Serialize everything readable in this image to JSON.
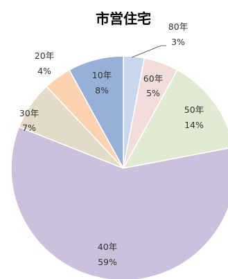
{
  "chart_data": {
    "type": "pie",
    "title": "市営住宅",
    "slices": [
      {
        "label": "80年",
        "pct_label": "3%",
        "value": 3,
        "color": "#c9d7ee"
      },
      {
        "label": "60年",
        "pct_label": "5%",
        "value": 5,
        "color": "#f3dcdc"
      },
      {
        "label": "50年",
        "pct_label": "14%",
        "value": 14,
        "color": "#e2ebd2"
      },
      {
        "label": "40年",
        "pct_label": "59%",
        "value": 59,
        "color": "#cbc1dd"
      },
      {
        "label": "30年",
        "pct_label": "7%",
        "value": 7,
        "color": "#e2dbc8"
      },
      {
        "label": "20年",
        "pct_label": "4%",
        "value": 4,
        "color": "#fbd2b2"
      },
      {
        "label": "10年",
        "pct_label": "8%",
        "value": 8,
        "color": "#98afd8"
      }
    ],
    "start_angle_deg": 0,
    "direction": "clockwise",
    "stroke": "#ffffff",
    "legend": "none"
  }
}
